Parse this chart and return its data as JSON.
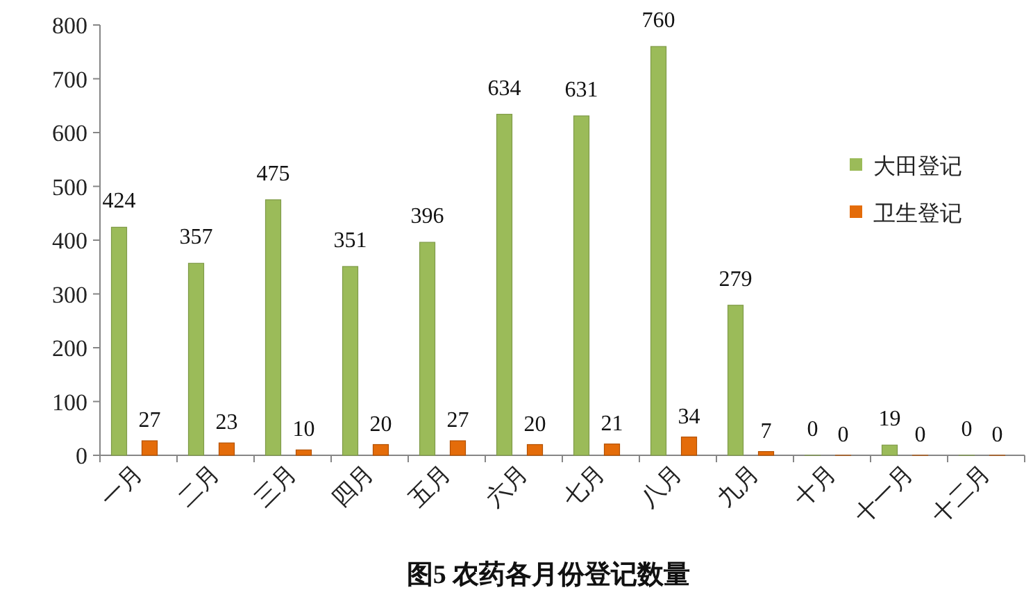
{
  "chart_data": {
    "type": "bar",
    "title": "图5 农药各月份登记数量",
    "categories": [
      "一月",
      "二月",
      "三月",
      "四月",
      "五月",
      "六月",
      "七月",
      "八月",
      "九月",
      "十月",
      "十一月",
      "十二月"
    ],
    "series": [
      {
        "name": "大田登记",
        "color": "#9bbb59",
        "values": [
          424,
          357,
          475,
          351,
          396,
          634,
          631,
          760,
          279,
          0,
          19,
          0
        ]
      },
      {
        "name": "卫生登记",
        "color": "#e46c0a",
        "values": [
          27,
          23,
          10,
          20,
          27,
          20,
          21,
          34,
          7,
          0,
          0,
          0
        ]
      }
    ],
    "ylim": [
      0,
      800
    ],
    "yticks": [
      0,
      100,
      200,
      300,
      400,
      500,
      600,
      700,
      800
    ],
    "data_labels": true,
    "legend": "right",
    "grid": false
  }
}
